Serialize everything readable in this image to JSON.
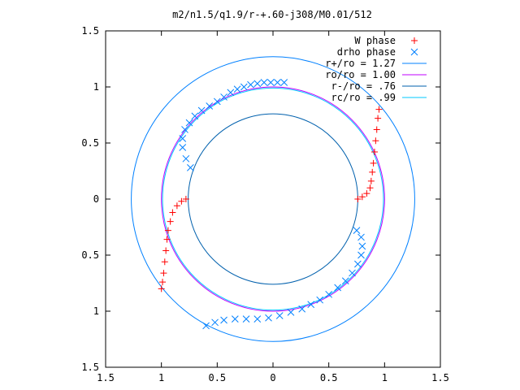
{
  "chart_data": {
    "type": "scatter",
    "title": "m2/n1.5/q1.9/r-+.60-j308/M0.01/512",
    "xlabel": "",
    "ylabel": "",
    "xlim": [
      -1.5,
      1.5
    ],
    "ylim": [
      -1.5,
      1.5
    ],
    "x_tick_values": [
      -1.5,
      -1,
      -0.5,
      0,
      0.5,
      1,
      1.5
    ],
    "x_tick_labels": [
      "1.5",
      "1",
      "0.5",
      "0",
      "0.5",
      "1",
      "1.5"
    ],
    "y_tick_values": [
      1.5,
      1,
      0.5,
      0,
      -0.5,
      -1,
      -1.5
    ],
    "y_tick_labels": [
      "1.5",
      "1",
      "0.5",
      "0",
      "0.5",
      "1",
      "1.5"
    ],
    "grid": false,
    "legend_position": "top-right",
    "series": [
      {
        "name": "W phase",
        "marker": "+",
        "color": "#ff0000",
        "x": [
          0.76,
          0.8,
          0.84,
          0.87,
          0.88,
          0.89,
          0.9,
          0.91,
          0.92,
          0.93,
          0.94,
          0.95,
          -0.78,
          -0.82,
          -0.86,
          -0.9,
          -0.92,
          -0.94,
          -0.95,
          -0.96,
          -0.97,
          -0.98,
          -0.99,
          -1.0
        ],
        "y": [
          0.0,
          0.02,
          0.05,
          0.1,
          0.16,
          0.24,
          0.32,
          0.42,
          0.52,
          0.62,
          0.72,
          0.8,
          0.0,
          -0.02,
          -0.06,
          -0.12,
          -0.2,
          -0.28,
          -0.36,
          -0.46,
          -0.56,
          -0.66,
          -0.74,
          -0.8
        ]
      },
      {
        "name": "drho phase",
        "marker": "x",
        "color": "#0080ff",
        "x": [
          -0.74,
          -0.78,
          -0.81,
          -0.81,
          -0.79,
          -0.75,
          -0.7,
          -0.64,
          -0.57,
          -0.5,
          -0.44,
          -0.38,
          -0.32,
          -0.26,
          -0.2,
          -0.14,
          -0.08,
          -0.02,
          0.04,
          0.1,
          0.75,
          0.79,
          0.8,
          0.79,
          0.76,
          0.71,
          0.65,
          0.58,
          0.5,
          0.42,
          0.34,
          0.26,
          0.16,
          0.06,
          -0.04,
          -0.14,
          -0.24,
          -0.34,
          -0.44,
          -0.52,
          -0.6
        ],
        "y": [
          0.28,
          0.36,
          0.46,
          0.54,
          0.62,
          0.68,
          0.74,
          0.79,
          0.83,
          0.87,
          0.91,
          0.95,
          0.98,
          1.0,
          1.02,
          1.03,
          1.04,
          1.04,
          1.04,
          1.04,
          -0.28,
          -0.34,
          -0.42,
          -0.5,
          -0.58,
          -0.66,
          -0.73,
          -0.79,
          -0.85,
          -0.9,
          -0.94,
          -0.98,
          -1.01,
          -1.04,
          -1.06,
          -1.07,
          -1.07,
          -1.07,
          -1.08,
          -1.1,
          -1.13
        ]
      },
      {
        "name": "r+/ro = 1.27",
        "type": "circle",
        "radius": 1.27,
        "color": "#0080ff"
      },
      {
        "name": "ro/ro = 1.00",
        "type": "circle",
        "radius": 1.0,
        "color": "#c000ff"
      },
      {
        "name": "r-/ro = .76",
        "type": "circle",
        "radius": 0.76,
        "color": "#0060ad"
      },
      {
        "name": "rc/ro = .99",
        "type": "circle",
        "radius": 0.99,
        "color": "#00c8ff"
      }
    ]
  }
}
